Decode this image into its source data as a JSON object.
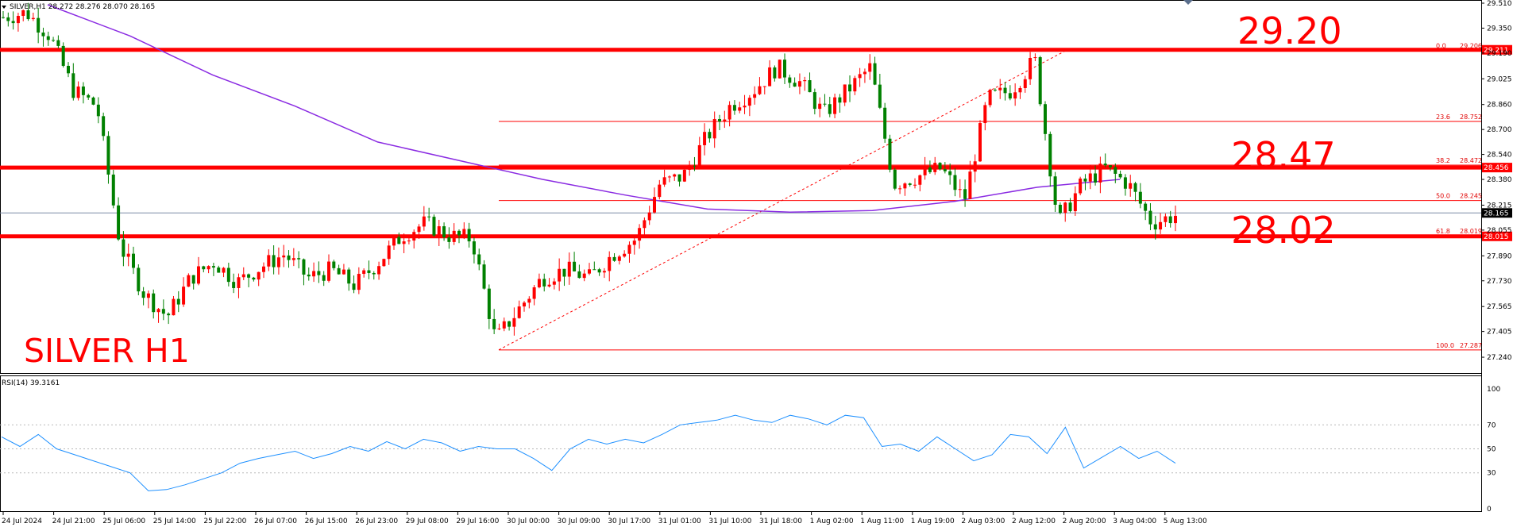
{
  "header": {
    "symbol_line": "SILVER,H1  28.272 28.276 28.070 28.165",
    "rsi_line": "RSI(14) 39.3161"
  },
  "annotations": {
    "title": "SILVER H1",
    "level_high": "29.20",
    "level_mid": "28.47",
    "level_low": "28.02"
  },
  "colors": {
    "bull": "#ff0000",
    "bear": "#008000",
    "ma": "#8a2be2",
    "rsi": "#1e90ff",
    "level": "#ff0000",
    "fib": "#ff0000"
  },
  "chart_data": {
    "type": "candlestick",
    "symbol": "SILVER",
    "timeframe": "H1",
    "ohlc_current": {
      "open": 28.272,
      "high": 28.276,
      "low": 28.07,
      "close": 28.165
    },
    "price_axis": {
      "ticks": [
        "29.510",
        "29.350",
        "29.190",
        "29.025",
        "28.860",
        "28.700",
        "28.540",
        "28.380",
        "28.215",
        "28.055",
        "27.890",
        "27.730",
        "27.565",
        "27.405",
        "27.240"
      ],
      "ylim": [
        27.24,
        29.51
      ]
    },
    "time_axis": [
      "24 Jul 2024",
      "24 Jul 21:00",
      "25 Jul 06:00",
      "25 Jul 14:00",
      "25 Jul 22:00",
      "26 Jul 07:00",
      "26 Jul 15:00",
      "26 Jul 23:00",
      "29 Jul 08:00",
      "29 Jul 16:00",
      "30 Jul 00:00",
      "30 Jul 09:00",
      "30 Jul 17:00",
      "31 Jul 01:00",
      "31 Jul 10:00",
      "31 Jul 18:00",
      "1 Aug 02:00",
      "1 Aug 11:00",
      "1 Aug 19:00",
      "2 Aug 03:00",
      "2 Aug 12:00",
      "2 Aug 20:00",
      "3 Aug 04:00",
      "5 Aug 13:00"
    ],
    "price_path": [
      29.42,
      29.45,
      29.3,
      28.95,
      28.85,
      27.95,
      27.65,
      27.5,
      27.75,
      27.85,
      27.72,
      27.82,
      27.9,
      27.75,
      27.8,
      27.7,
      27.85,
      28.02,
      28.1,
      28.02,
      28.0,
      27.35,
      27.55,
      27.75,
      27.8,
      27.75,
      27.9,
      28.0,
      28.35,
      28.4,
      28.65,
      28.85,
      28.95,
      29.1,
      29.0,
      28.8,
      28.95,
      29.1,
      28.35,
      28.4,
      28.45,
      28.25,
      28.9,
      28.95,
      29.15,
      28.1,
      28.35,
      28.45,
      28.35,
      28.1,
      28.15
    ],
    "ma_path": [
      29.5,
      29.3,
      29.05,
      28.85,
      28.62,
      28.5,
      28.38,
      28.28,
      28.19,
      28.17,
      28.18,
      28.24,
      28.33,
      28.38
    ],
    "horizontal_levels": [
      {
        "price": 29.211,
        "label": "29.211"
      },
      {
        "price": 28.456,
        "label": "28.456"
      },
      {
        "price": 28.015,
        "label": "28.015"
      }
    ],
    "current_price": {
      "price": 28.165,
      "label": "28.165"
    },
    "fibonacci": {
      "from": {
        "price": 27.287
      },
      "to": {
        "price": 29.206
      },
      "levels": [
        {
          "ratio": "0.0",
          "price": "29.206"
        },
        {
          "ratio": "23.6",
          "price": "28.752"
        },
        {
          "ratio": "38.2",
          "price": "28.472"
        },
        {
          "ratio": "50.0",
          "price": "28.245"
        },
        {
          "ratio": "61.8",
          "price": "28.019"
        },
        {
          "ratio": "100.0",
          "price": "27.287"
        }
      ]
    },
    "rsi": {
      "period": 14,
      "value": 39.3161,
      "ticks": [
        "100",
        "70",
        "50",
        "30",
        "0"
      ],
      "path": [
        60,
        52,
        62,
        50,
        45,
        40,
        35,
        30,
        15,
        16,
        20,
        25,
        30,
        38,
        42,
        45,
        48,
        42,
        46,
        52,
        48,
        56,
        50,
        58,
        55,
        48,
        52,
        50,
        50,
        42,
        32,
        50,
        58,
        54,
        58,
        55,
        62,
        70,
        72,
        74,
        78,
        74,
        72,
        78,
        75,
        70,
        78,
        76,
        52,
        54,
        48,
        60,
        50,
        40,
        45,
        62,
        60,
        46,
        68,
        34,
        43,
        52,
        42,
        48,
        38
      ],
      "levels": [
        70,
        50,
        30
      ]
    }
  }
}
